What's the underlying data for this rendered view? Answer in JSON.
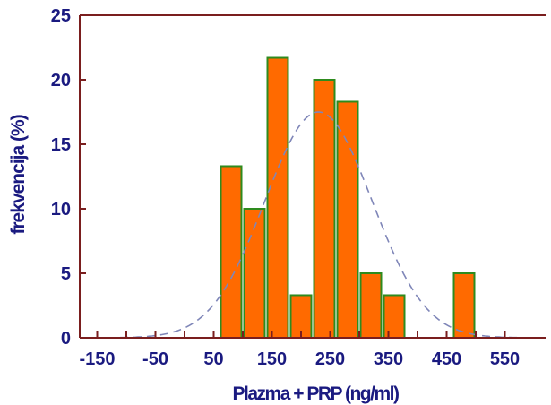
{
  "chart_data": {
    "type": "bar",
    "xlabel": "Plazma + PRP (ng/ml)",
    "ylabel": "frekvencija (%)",
    "xlim": [
      -180,
      620
    ],
    "ylim": [
      0,
      25
    ],
    "x_ticks": [
      -150,
      -50,
      50,
      150,
      250,
      350,
      450,
      550
    ],
    "y_ticks": [
      0,
      5,
      10,
      15,
      20,
      25
    ],
    "bin_width": 40,
    "bars": [
      {
        "start": 60,
        "end": 100,
        "value": 13.3
      },
      {
        "start": 100,
        "end": 140,
        "value": 10.0
      },
      {
        "start": 140,
        "end": 180,
        "value": 21.7
      },
      {
        "start": 180,
        "end": 220,
        "value": 3.3
      },
      {
        "start": 220,
        "end": 260,
        "value": 20.0
      },
      {
        "start": 260,
        "end": 300,
        "value": 18.3
      },
      {
        "start": 300,
        "end": 340,
        "value": 5.0
      },
      {
        "start": 340,
        "end": 380,
        "value": 3.3
      },
      {
        "start": 380,
        "end": 420,
        "value": 0.0
      },
      {
        "start": 420,
        "end": 460,
        "value": 0.0
      },
      {
        "start": 460,
        "end": 500,
        "value": 5.0
      }
    ],
    "normal_curve": {
      "mean": 230,
      "sd": 92,
      "peak": 17.5
    },
    "grid": false,
    "colors": {
      "bar_fill": "#ff6a00",
      "bar_stroke": "#2e8b1e",
      "axis": "#7a1e1e",
      "curve": "#7f86b8",
      "text": "#1a1a80"
    }
  }
}
